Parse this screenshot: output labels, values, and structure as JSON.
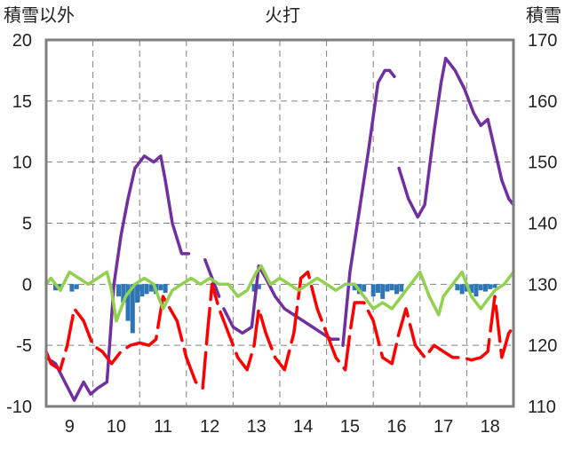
{
  "chart_data": {
    "type": "line",
    "title": "火打",
    "left_axis_label": "積雪以外",
    "right_axis_label": "積雪",
    "ylim_left": [
      -10,
      20
    ],
    "ylim_right": [
      110,
      170
    ],
    "yticks_left": [
      20,
      15,
      10,
      5,
      0,
      -5,
      -10
    ],
    "yticks_right": [
      170,
      160,
      150,
      140,
      130,
      120,
      110
    ],
    "xlim": [
      8.5,
      18.5
    ],
    "xtick_labels": [
      "9",
      "10",
      "11",
      "12",
      "13",
      "14",
      "15",
      "16",
      "17",
      "18"
    ],
    "grid": true,
    "colors": {
      "snow_depth": "#7030a0",
      "temperature": "#ff0000",
      "green_series": "#92d050",
      "precipitation": "#2e75b6",
      "grid": "#808080",
      "frame": "#7f7f7f"
    },
    "series": [
      {
        "axis": "right",
        "color": "#7030a0",
        "style": "line",
        "x": [
          8.5,
          8.7,
          8.9,
          9.1,
          9.3,
          9.45,
          9.6,
          9.8,
          9.95,
          10.1,
          10.25,
          10.4,
          10.6,
          10.8,
          10.95,
          11.05,
          11.2,
          11.4,
          11.55,
          null,
          11.9,
          12.0,
          12.1,
          12.2,
          null,
          12.3,
          12.5,
          12.7,
          12.9,
          13.05,
          13.2,
          13.4,
          13.6,
          13.8,
          14.0,
          14.2,
          14.4,
          14.6,
          14.75,
          null,
          14.85,
          15.0,
          15.2,
          15.4,
          15.6,
          15.75,
          15.85,
          15.95,
          null,
          16.05,
          16.25,
          16.45,
          16.6,
          16.8,
          16.95,
          17.05,
          17.25,
          17.45,
          17.65,
          17.8,
          17.95,
          18.1,
          18.25,
          18.4,
          18.5
        ],
        "y": [
          118,
          117,
          114,
          111,
          114,
          112,
          113,
          114,
          130,
          138,
          144,
          149,
          151,
          150,
          151,
          147,
          140,
          135,
          135,
          null,
          134,
          132,
          130,
          128,
          null,
          126,
          123,
          122,
          123,
          133,
          131,
          128,
          126,
          125,
          124,
          123,
          122,
          121,
          121,
          null,
          120,
          132,
          142,
          152,
          163,
          165,
          165,
          164,
          null,
          149,
          144,
          141,
          143,
          155,
          163,
          167,
          165,
          162,
          158,
          156,
          157,
          152,
          147,
          144,
          143
        ]
      },
      {
        "axis": "left",
        "color": "#ff0000",
        "style": "dashed-line",
        "x": [
          8.5,
          8.6,
          8.8,
          8.95,
          9.1,
          9.3,
          9.5,
          9.7,
          9.9,
          10.1,
          10.3,
          10.5,
          10.7,
          10.85,
          11.0,
          11.15,
          11.3,
          11.5,
          11.7,
          11.85,
          11.95,
          12.05,
          12.2,
          12.4,
          12.6,
          12.8,
          12.95,
          13.05,
          13.2,
          13.4,
          13.6,
          13.8,
          13.95,
          14.1,
          14.3,
          14.5,
          14.7,
          14.9,
          15.0,
          15.1,
          15.3,
          15.5,
          15.7,
          15.9,
          16.05,
          16.2,
          16.4,
          16.6,
          16.8,
          17.0,
          17.2,
          17.4,
          17.6,
          17.8,
          17.95,
          18.1,
          18.25,
          18.4,
          18.5
        ],
        "y": [
          -5.5,
          -6.5,
          -7,
          -5,
          -2,
          -3,
          -5,
          -5.5,
          -6.5,
          -5.5,
          -5,
          -4.8,
          -5,
          -4.5,
          -1,
          -2,
          -3,
          -6,
          -8,
          -8.5,
          -4,
          0,
          -2,
          -4,
          -6,
          -7,
          -5,
          -2,
          -4,
          -6,
          -7,
          -4,
          0.5,
          1,
          -2,
          -4,
          -6,
          -7,
          -4,
          -1.5,
          -1.5,
          -3,
          -6,
          -6.5,
          -4,
          -2,
          -5,
          -6,
          -5,
          -5.5,
          -6,
          -6,
          -6.2,
          -6,
          -5.5,
          -1,
          -6,
          -4,
          -3.5
        ]
      },
      {
        "axis": "left",
        "color": "#92d050",
        "style": "line",
        "x": [
          8.5,
          8.6,
          8.8,
          9.0,
          9.2,
          9.4,
          9.6,
          9.8,
          9.9,
          10.0,
          10.2,
          10.4,
          10.6,
          10.8,
          10.9,
          11.0,
          11.2,
          11.4,
          11.6,
          11.8,
          12.0,
          12.2,
          12.4,
          12.6,
          12.8,
          13.0,
          13.1,
          13.3,
          13.5,
          13.7,
          13.9,
          14.1,
          14.3,
          14.5,
          14.7,
          14.9,
          15.1,
          15.3,
          15.5,
          15.7,
          15.9,
          16.1,
          16.3,
          16.5,
          16.7,
          16.9,
          17.0,
          17.2,
          17.4,
          17.6,
          17.8,
          17.9,
          18.0,
          18.1,
          18.3,
          18.5
        ],
        "y": [
          0,
          0.5,
          -0.5,
          1,
          0.5,
          0,
          0.5,
          1,
          -0.5,
          -3,
          -1,
          0,
          0.5,
          0,
          -1,
          -2,
          -0.5,
          0,
          0.5,
          0,
          0.5,
          0,
          0,
          -1,
          -0.5,
          1,
          1.5,
          0,
          0.5,
          0,
          -0.5,
          0,
          0.5,
          0,
          -0.5,
          0,
          0,
          -1,
          -2,
          -1.5,
          -2,
          -1,
          0,
          1,
          -1,
          -2.5,
          -1,
          0,
          1,
          -1,
          -2,
          -1.5,
          -1,
          -0.5,
          0,
          1
        ]
      },
      {
        "axis": "left",
        "color": "#2e75b6",
        "style": "bar",
        "x": [
          8.7,
          8.8,
          9.05,
          9.15,
          10.05,
          10.15,
          10.25,
          10.35,
          10.45,
          10.55,
          10.65,
          10.75,
          10.85,
          10.95,
          11.05,
          12.95,
          13.05,
          15.1,
          15.2,
          15.3,
          15.5,
          15.6,
          15.7,
          15.8,
          15.9,
          16.0,
          16.1,
          17.3,
          17.4,
          17.5,
          17.6,
          17.7,
          17.8,
          17.9,
          18.0,
          18.1
        ],
        "y": [
          -0.5,
          -0.3,
          -0.6,
          -0.4,
          -1,
          -1.5,
          -3,
          -4,
          -1.5,
          -1,
          -0.8,
          -0.6,
          -0.8,
          -0.5,
          -0.7,
          -0.6,
          -0.4,
          -0.5,
          -0.8,
          -0.6,
          -1,
          -0.7,
          -1.2,
          -0.6,
          -0.5,
          -0.8,
          -0.6,
          -0.5,
          -0.8,
          -0.6,
          -0.7,
          -1,
          -0.5,
          -0.6,
          -0.4,
          -0.3
        ]
      }
    ]
  }
}
